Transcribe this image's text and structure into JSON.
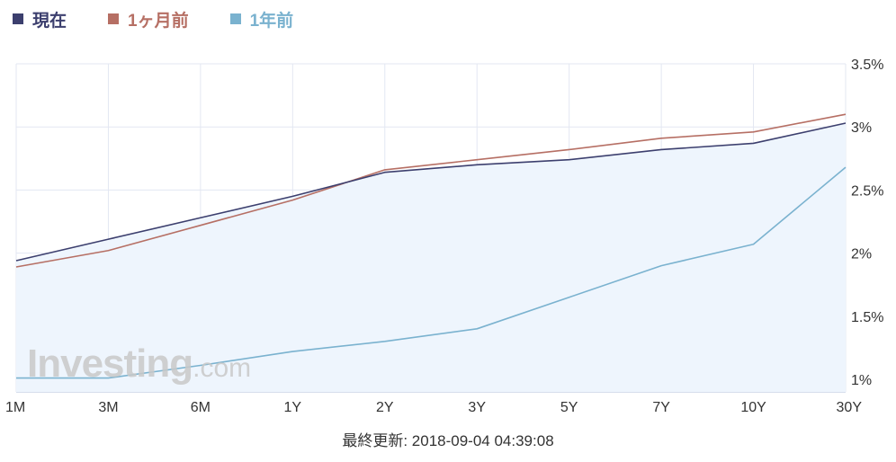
{
  "legend": [
    {
      "label": "現在",
      "color": "#3c3f6e"
    },
    {
      "label": "1ヶ月前",
      "color": "#b66f64"
    },
    {
      "label": "1年前",
      "color": "#7ab2cf"
    }
  ],
  "watermark": {
    "brand": "Investing",
    "suffix": ".com"
  },
  "footer": {
    "updated": "最終更新: 2018-09-04 04:39:08"
  },
  "colors": {
    "grid": "#e3e7f2",
    "area_fill": "#eef5fd",
    "axis_text": "#333333"
  },
  "chart_data": {
    "type": "line",
    "title": "",
    "xlabel": "",
    "ylabel": "",
    "categories": [
      "1M",
      "3M",
      "6M",
      "1Y",
      "2Y",
      "3Y",
      "5Y",
      "7Y",
      "10Y",
      "30Y"
    ],
    "ylim": [
      0.9,
      3.5
    ],
    "yticks": [
      1,
      1.5,
      2,
      2.5,
      3,
      3.5
    ],
    "ytick_labels": [
      "1%",
      "1.5%",
      "2%",
      "2.5%",
      "3%",
      "3.5%"
    ],
    "y_axis_side": "right",
    "grid": true,
    "legend_position": "top-left",
    "series": [
      {
        "name": "現在",
        "color": "#3c3f6e",
        "area": true,
        "values": [
          1.94,
          2.11,
          2.28,
          2.45,
          2.64,
          2.7,
          2.74,
          2.82,
          2.87,
          3.03
        ]
      },
      {
        "name": "1ヶ月前",
        "color": "#b66f64",
        "area": false,
        "values": [
          1.89,
          2.02,
          2.22,
          2.42,
          2.66,
          2.74,
          2.82,
          2.91,
          2.96,
          3.1
        ]
      },
      {
        "name": "1年前",
        "color": "#7ab2cf",
        "area": false,
        "values": [
          1.01,
          1.01,
          1.11,
          1.22,
          1.3,
          1.4,
          1.65,
          1.9,
          2.07,
          2.68
        ]
      }
    ]
  }
}
